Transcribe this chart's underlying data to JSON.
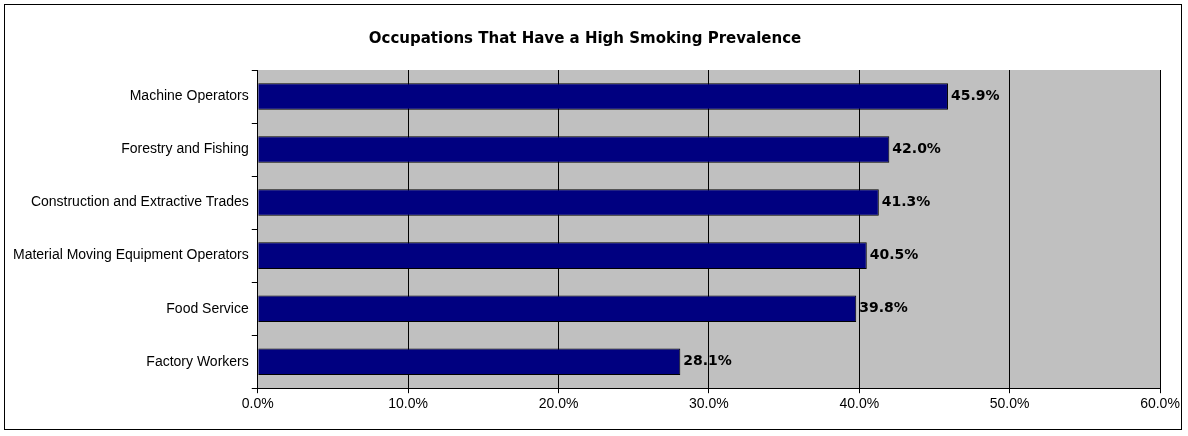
{
  "chart_data": {
    "type": "bar",
    "orientation": "horizontal",
    "title": "Occupations That Have a High Smoking Prevalence",
    "categories": [
      "Machine Operators",
      "Forestry and Fishing",
      "Construction and Extractive Trades",
      "Material Moving Equipment Operators",
      "Food Service",
      "Factory Workers"
    ],
    "values": [
      45.9,
      42.0,
      41.3,
      40.5,
      39.8,
      28.1
    ],
    "value_labels": [
      "45.9%",
      "42.0%",
      "41.3%",
      "40.5%",
      "39.8%",
      "28.1%"
    ],
    "color": "#000080",
    "xlim": [
      0,
      60
    ],
    "xticks": [
      {
        "value": 0,
        "label": "0.0%"
      },
      {
        "value": 10,
        "label": "10.0%"
      },
      {
        "value": 20,
        "label": "20.0%"
      },
      {
        "value": 30,
        "label": "30.0%"
      },
      {
        "value": 40,
        "label": "40.0%"
      },
      {
        "value": 50,
        "label": "50.0%"
      },
      {
        "value": 60,
        "label": "60.0%"
      }
    ],
    "grid": "x",
    "legend": false
  }
}
